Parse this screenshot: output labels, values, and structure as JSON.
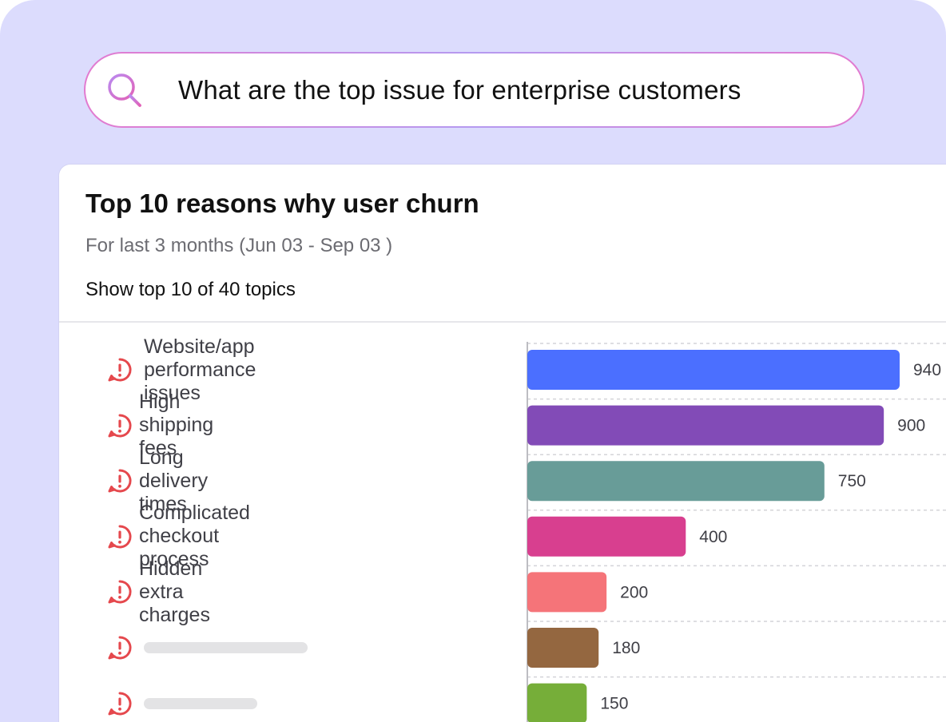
{
  "search": {
    "query": "What are the top issue for enterprise customers",
    "icon": "search-icon"
  },
  "card": {
    "title": "Top 10 reasons why user churn",
    "subtitle": "For last 3 months (Jun 03 - Sep 03 )",
    "filter": "Show top 10 of 40 topics"
  },
  "colors": {
    "frame_background": "#dcdcfd",
    "alert_icon": "#e5484d",
    "search_border": "#d67bd8"
  },
  "chart_data": {
    "type": "bar",
    "orientation": "horizontal",
    "title": "Top 10 reasons why user churn",
    "categories": [
      "Website/app performance issues",
      "High shipping fees",
      "Long delivery times",
      "Complicated checkout process",
      "Hidden extra charges",
      "",
      ""
    ],
    "values": [
      940,
      900,
      750,
      400,
      200,
      180,
      150
    ],
    "value_labels": [
      "940",
      "900",
      "750",
      "400",
      "200",
      "180",
      "150"
    ],
    "bar_colors": [
      "#4b6fff",
      "#824bb7",
      "#689c98",
      "#d83f8f",
      "#f57479",
      "#946740",
      "#76ae39"
    ],
    "xlim": [
      0,
      1000
    ],
    "grid": true,
    "legend": "none"
  }
}
